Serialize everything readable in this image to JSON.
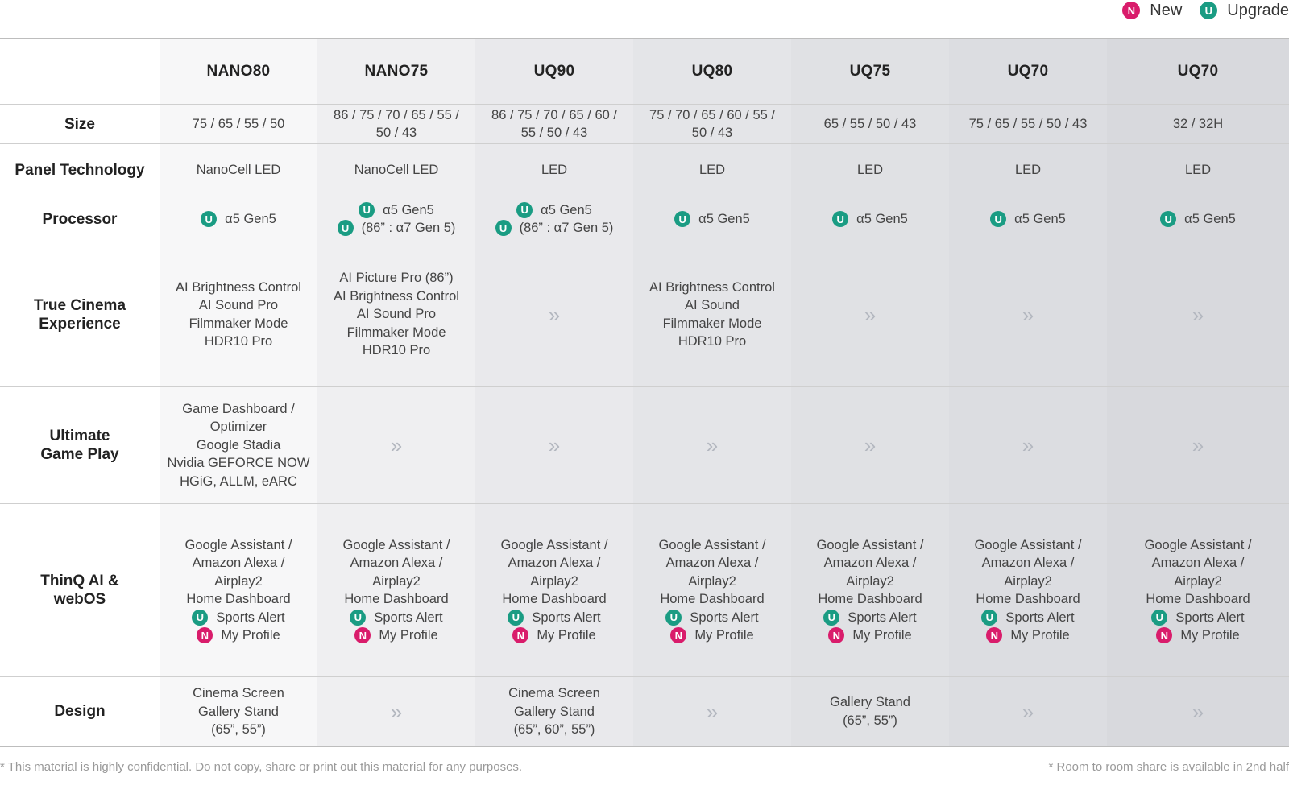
{
  "legend": {
    "new": {
      "badge": "N",
      "label": "New"
    },
    "upgrade": {
      "badge": "U",
      "label": "Upgrade"
    }
  },
  "colors": {
    "upgrade_badge": "#1a9c83",
    "new_badge": "#d91c6b",
    "column_shades": [
      "#f7f7f8",
      "#efeff1",
      "#e9e9ec",
      "#e4e5e8",
      "#e0e1e4",
      "#dcdde1",
      "#d8d9dd"
    ]
  },
  "table": {
    "models": [
      "NANO80",
      "NANO75",
      "UQ90",
      "UQ80",
      "UQ75",
      "UQ70",
      "UQ70"
    ],
    "rows": [
      {
        "label": "Size",
        "cells": [
          [
            {
              "text": "75 / 65 / 55 / 50"
            }
          ],
          [
            {
              "text": "86 / 75 / 70 / 65 / 55 /"
            },
            {
              "text": "50 / 43"
            }
          ],
          [
            {
              "text": "86 / 75 / 70 / 65 / 60 /"
            },
            {
              "text": "55 / 50 / 43"
            }
          ],
          [
            {
              "text": "75 / 70 / 65 / 60 / 55 /"
            },
            {
              "text": "50 / 43"
            }
          ],
          [
            {
              "text": "65 / 55 / 50 / 43"
            }
          ],
          [
            {
              "text": "75 / 65 / 55 / 50 / 43"
            }
          ],
          [
            {
              "text": "32 / 32H"
            }
          ]
        ]
      },
      {
        "label": "Panel Technology",
        "cells": [
          [
            {
              "text": "NanoCell LED"
            }
          ],
          [
            {
              "text": "NanoCell LED"
            }
          ],
          [
            {
              "text": "LED"
            }
          ],
          [
            {
              "text": "LED"
            }
          ],
          [
            {
              "text": "LED"
            }
          ],
          [
            {
              "text": "LED"
            }
          ],
          [
            {
              "text": "LED"
            }
          ]
        ]
      },
      {
        "label": "Processor",
        "cells": [
          [
            {
              "badge": "U",
              "text": "α5 Gen5"
            }
          ],
          [
            {
              "badge": "U",
              "text": "α5 Gen5"
            },
            {
              "badge": "U",
              "text": "(86” : α7 Gen 5)"
            }
          ],
          [
            {
              "badge": "U",
              "text": "α5 Gen5"
            },
            {
              "badge": "U",
              "text": "(86” : α7 Gen 5)"
            }
          ],
          [
            {
              "badge": "U",
              "text": "α5 Gen5"
            }
          ],
          [
            {
              "badge": "U",
              "text": "α5 Gen5"
            }
          ],
          [
            {
              "badge": "U",
              "text": "α5 Gen5"
            }
          ],
          [
            {
              "badge": "U",
              "text": "α5 Gen5"
            }
          ]
        ]
      },
      {
        "label": "True Cinema Experience",
        "cells": [
          [
            {
              "text": "AI Brightness Control"
            },
            {
              "text": "AI Sound Pro"
            },
            {
              "text": "Filmmaker Mode"
            },
            {
              "text": "HDR10 Pro"
            }
          ],
          [
            {
              "text": "AI Picture Pro (86”)"
            },
            {
              "text": "AI Brightness Control"
            },
            {
              "text": "AI Sound Pro"
            },
            {
              "text": "Filmmaker Mode"
            },
            {
              "text": "HDR10 Pro"
            }
          ],
          [
            {
              "chevron": "»"
            }
          ],
          [
            {
              "text": "AI Brightness Control"
            },
            {
              "text": "AI Sound"
            },
            {
              "text": "Filmmaker Mode"
            },
            {
              "text": "HDR10 Pro"
            }
          ],
          [
            {
              "chevron": "»"
            }
          ],
          [
            {
              "chevron": "»"
            }
          ],
          [
            {
              "chevron": "»"
            }
          ]
        ]
      },
      {
        "label": "Ultimate Game Play",
        "cells": [
          [
            {
              "text": "Game Dashboard /"
            },
            {
              "text": "Optimizer"
            },
            {
              "text": "Google Stadia"
            },
            {
              "text": "Nvidia GEFORCE  NOW"
            },
            {
              "text": "HGiG, ALLM, eARC"
            }
          ],
          [
            {
              "chevron": "»"
            }
          ],
          [
            {
              "chevron": "»"
            }
          ],
          [
            {
              "chevron": "»"
            }
          ],
          [
            {
              "chevron": "»"
            }
          ],
          [
            {
              "chevron": "»"
            }
          ],
          [
            {
              "chevron": "»"
            }
          ]
        ]
      },
      {
        "label": "ThinQ AI & webOS",
        "cells": [
          [
            {
              "text": "Google Assistant /"
            },
            {
              "text": "Amazon Alexa /"
            },
            {
              "text": "Airplay2"
            },
            {
              "text": "Home Dashboard"
            },
            {
              "badge": "U",
              "text": "Sports Alert"
            },
            {
              "badge": "N",
              "text": "My Profile"
            }
          ],
          [
            {
              "text": "Google Assistant /"
            },
            {
              "text": "Amazon Alexa /"
            },
            {
              "text": "Airplay2"
            },
            {
              "text": "Home Dashboard"
            },
            {
              "badge": "U",
              "text": "Sports Alert"
            },
            {
              "badge": "N",
              "text": "My Profile"
            }
          ],
          [
            {
              "text": "Google Assistant /"
            },
            {
              "text": "Amazon Alexa /"
            },
            {
              "text": "Airplay2"
            },
            {
              "text": "Home Dashboard"
            },
            {
              "badge": "U",
              "text": "Sports Alert"
            },
            {
              "badge": "N",
              "text": "My Profile"
            }
          ],
          [
            {
              "text": "Google Assistant /"
            },
            {
              "text": "Amazon Alexa /"
            },
            {
              "text": "Airplay2"
            },
            {
              "text": "Home Dashboard"
            },
            {
              "badge": "U",
              "text": "Sports Alert"
            },
            {
              "badge": "N",
              "text": "My Profile"
            }
          ],
          [
            {
              "text": "Google Assistant /"
            },
            {
              "text": "Amazon Alexa /"
            },
            {
              "text": "Airplay2"
            },
            {
              "text": "Home Dashboard"
            },
            {
              "badge": "U",
              "text": "Sports Alert"
            },
            {
              "badge": "N",
              "text": "My Profile"
            }
          ],
          [
            {
              "text": "Google Assistant /"
            },
            {
              "text": "Amazon Alexa /"
            },
            {
              "text": "Airplay2"
            },
            {
              "text": "Home Dashboard"
            },
            {
              "badge": "U",
              "text": "Sports Alert"
            },
            {
              "badge": "N",
              "text": "My Profile"
            }
          ],
          [
            {
              "text": "Google Assistant /"
            },
            {
              "text": "Amazon Alexa /"
            },
            {
              "text": "Airplay2"
            },
            {
              "text": "Home Dashboard"
            },
            {
              "badge": "U",
              "text": "Sports Alert"
            },
            {
              "badge": "N",
              "text": "My Profile"
            }
          ]
        ]
      },
      {
        "label": "Design",
        "cells": [
          [
            {
              "text": "Cinema Screen"
            },
            {
              "text": "Gallery Stand"
            },
            {
              "text": "(65”, 55”)"
            }
          ],
          [
            {
              "chevron": "»"
            }
          ],
          [
            {
              "text": "Cinema Screen"
            },
            {
              "text": "Gallery Stand"
            },
            {
              "text": "(65”, 60”, 55”)"
            }
          ],
          [
            {
              "chevron": "»"
            }
          ],
          [
            {
              "text": "Gallery Stand"
            },
            {
              "text": "(65”, 55”)"
            }
          ],
          [
            {
              "chevron": "»"
            }
          ],
          [
            {
              "chevron": "»"
            }
          ]
        ]
      }
    ]
  },
  "footnotes": {
    "left": "* This material is highly confidential. Do not copy, share or print out this material for any purposes.",
    "right": "* Room to room share is available in 2nd half"
  }
}
